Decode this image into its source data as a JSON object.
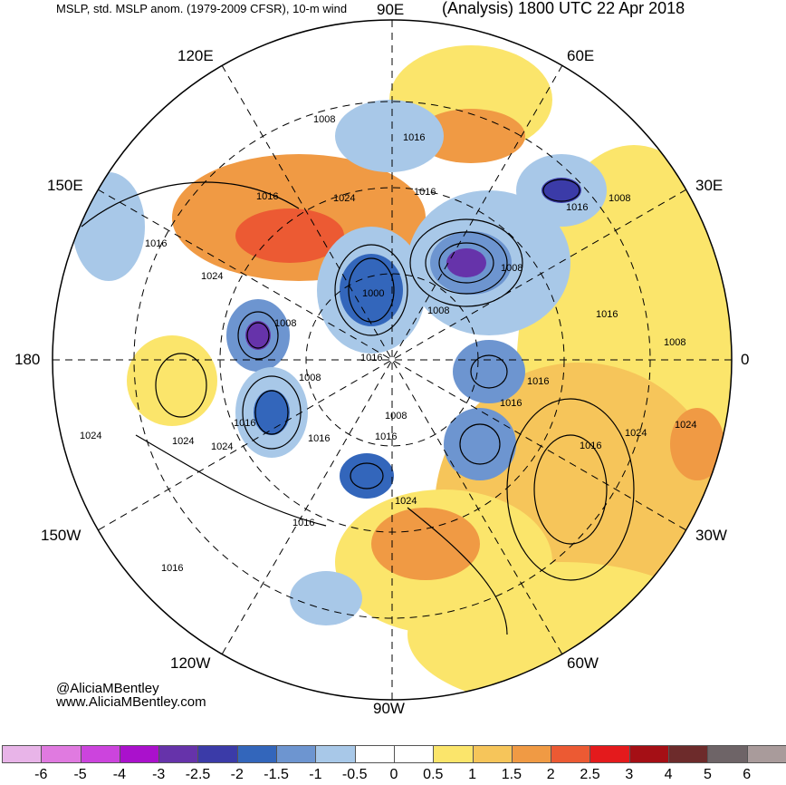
{
  "header": {
    "left": "MSLP, std. MSLP anom. (1979-2009 CFSR), 10-m wind",
    "right": "(Analysis) 1800 UTC 22 Apr 2018"
  },
  "longitude_labels": {
    "e90": "90E",
    "e120": "120E",
    "e60": "60E",
    "e150": "150E",
    "e30": "30E",
    "d180": "180",
    "d0": "0",
    "w150": "150W",
    "w30": "30W",
    "w120": "120W",
    "w60": "60W",
    "w90": "90W"
  },
  "credit": {
    "handle": "@AliciaMBentley",
    "site": "www.AliciaMBentley.com"
  },
  "isobar_labels": [
    "1008",
    "1016",
    "1016",
    "1024",
    "1016",
    "1008",
    "1016",
    "1016",
    "1024",
    "1008",
    "1000",
    "1008",
    "1008",
    "1016",
    "1016",
    "1008",
    "1008",
    "1016",
    "1016",
    "1024",
    "1016",
    "1008",
    "1024",
    "1024",
    "1024",
    "1024",
    "1016",
    "1016",
    "1016",
    "1024",
    "1016",
    "1016"
  ],
  "legend": {
    "ticks": [
      "-6",
      "-5",
      "-4",
      "-3",
      "-2.5",
      "-2",
      "-1.5",
      "-1",
      "-0.5",
      "0",
      "0.5",
      "1",
      "1.5",
      "2",
      "2.5",
      "3",
      "4",
      "5",
      "6"
    ],
    "colors": [
      "#e8b4e8",
      "#e07ae0",
      "#cc44dd",
      "#aa11cc",
      "#6633aa",
      "#3b3ba8",
      "#3366bb",
      "#6d95d0",
      "#a8c8e8",
      "#ffffff",
      "#ffffff",
      "#fbe56b",
      "#f6c55a",
      "#f09a44",
      "#ec5a33",
      "#e41a1c",
      "#a50f15",
      "#6d2b2b",
      "#6e6467",
      "#a99b9b"
    ]
  }
}
